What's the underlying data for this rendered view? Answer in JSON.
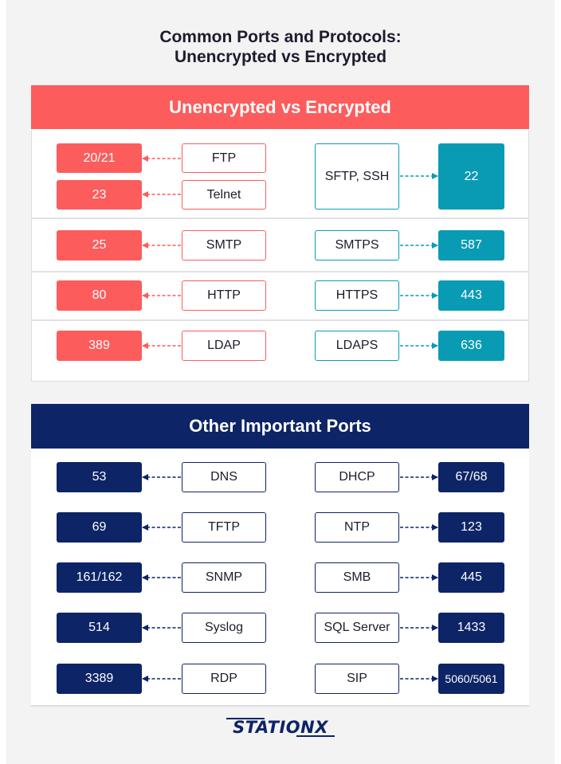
{
  "title": {
    "line1": "Common Ports and Protocols:",
    "line2": "Unencrypted vs Encrypted"
  },
  "section1": {
    "header": "Unencrypted vs Encrypted",
    "rows": [
      {
        "left": [
          {
            "port": "20/21",
            "protocol": "FTP"
          },
          {
            "port": "23",
            "protocol": "Telnet"
          }
        ],
        "right": {
          "protocol": "SFTP, SSH",
          "port": "22"
        }
      },
      {
        "left": [
          {
            "port": "25",
            "protocol": "SMTP"
          }
        ],
        "right": {
          "protocol": "SMTPS",
          "port": "587"
        }
      },
      {
        "left": [
          {
            "port": "80",
            "protocol": "HTTP"
          }
        ],
        "right": {
          "protocol": "HTTPS",
          "port": "443"
        }
      },
      {
        "left": [
          {
            "port": "389",
            "protocol": "LDAP"
          }
        ],
        "right": {
          "protocol": "LDAPS",
          "port": "636"
        }
      }
    ]
  },
  "section2": {
    "header": "Other Important Ports",
    "rows": [
      {
        "left": {
          "port": "53",
          "protocol": "DNS"
        },
        "right": {
          "protocol": "DHCP",
          "port": "67/68"
        }
      },
      {
        "left": {
          "port": "69",
          "protocol": "TFTP"
        },
        "right": {
          "protocol": "NTP",
          "port": "123"
        }
      },
      {
        "left": {
          "port": "161/162",
          "protocol": "SNMP"
        },
        "right": {
          "protocol": "SMB",
          "port": "445"
        }
      },
      {
        "left": {
          "port": "514",
          "protocol": "Syslog"
        },
        "right": {
          "protocol": "SQL Server",
          "port": "1433"
        }
      },
      {
        "left": {
          "port": "3389",
          "protocol": "RDP"
        },
        "right": {
          "protocol": "SIP",
          "port": "5060/5061"
        }
      }
    ]
  },
  "logo": {
    "text": "STATIONX"
  },
  "colors": {
    "red": "#fd5c5c",
    "teal": "#0a9bb4",
    "navy": "#0d2466"
  }
}
